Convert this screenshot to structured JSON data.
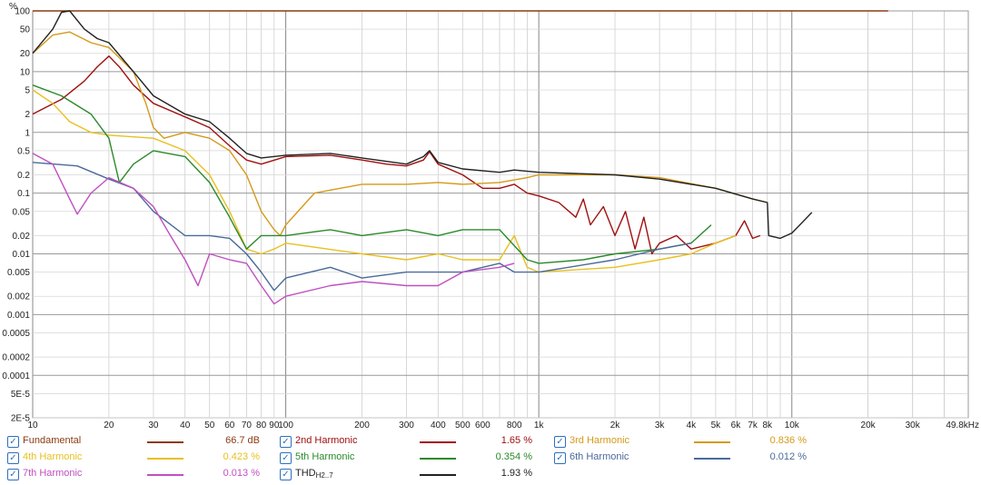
{
  "chart_data": {
    "type": "line",
    "ylabel": "%",
    "xunit": "Hz",
    "xscale": "log",
    "yscale": "log",
    "xlim": [
      10,
      49800
    ],
    "ylim": [
      2e-05,
      100
    ],
    "grid": true,
    "legend_position": "bottom",
    "x_ticks": [
      {
        "v": 10,
        "t": "10"
      },
      {
        "v": 20,
        "t": "20"
      },
      {
        "v": 30,
        "t": "30"
      },
      {
        "v": 40,
        "t": "40"
      },
      {
        "v": 50,
        "t": "50"
      },
      {
        "v": 60,
        "t": "60"
      },
      {
        "v": 70,
        "t": "70"
      },
      {
        "v": 80,
        "t": "80"
      },
      {
        "v": 90,
        "t": "90"
      },
      {
        "v": 100,
        "t": "100"
      },
      {
        "v": 200,
        "t": "200"
      },
      {
        "v": 300,
        "t": "300"
      },
      {
        "v": 400,
        "t": "400"
      },
      {
        "v": 500,
        "t": "500"
      },
      {
        "v": 600,
        "t": "600"
      },
      {
        "v": 800,
        "t": "800"
      },
      {
        "v": 1000,
        "t": "1k"
      },
      {
        "v": 2000,
        "t": "2k"
      },
      {
        "v": 3000,
        "t": "3k"
      },
      {
        "v": 4000,
        "t": "4k"
      },
      {
        "v": 5000,
        "t": "5k"
      },
      {
        "v": 6000,
        "t": "6k"
      },
      {
        "v": 7000,
        "t": "7k"
      },
      {
        "v": 8000,
        "t": "8k"
      },
      {
        "v": 10000,
        "t": "10k"
      },
      {
        "v": 20000,
        "t": "20k"
      },
      {
        "v": 30000,
        "t": "30k"
      },
      {
        "v": 49800,
        "t": "49.8kHz"
      }
    ],
    "y_ticks": [
      {
        "v": 100,
        "t": "100"
      },
      {
        "v": 50,
        "t": "50"
      },
      {
        "v": 20,
        "t": "20"
      },
      {
        "v": 10,
        "t": "10"
      },
      {
        "v": 5,
        "t": "5"
      },
      {
        "v": 2,
        "t": "2"
      },
      {
        "v": 1,
        "t": "1"
      },
      {
        "v": 0.5,
        "t": "0.5"
      },
      {
        "v": 0.2,
        "t": "0.2"
      },
      {
        "v": 0.1,
        "t": "0.1"
      },
      {
        "v": 0.05,
        "t": "0.05"
      },
      {
        "v": 0.02,
        "t": "0.02"
      },
      {
        "v": 0.01,
        "t": "0.01"
      },
      {
        "v": 0.005,
        "t": "0.005"
      },
      {
        "v": 0.002,
        "t": "0.002"
      },
      {
        "v": 0.001,
        "t": "0.001"
      },
      {
        "v": 0.0005,
        "t": "0.0005"
      },
      {
        "v": 0.0002,
        "t": "0.0002"
      },
      {
        "v": 0.0001,
        "t": "0.0001"
      },
      {
        "v": 5e-05,
        "t": "5E-5"
      },
      {
        "v": 2e-05,
        "t": "2E-5"
      }
    ],
    "series": [
      {
        "name": "Fundamental",
        "value": "66.7 dB",
        "color": "#8a3b12",
        "points": [
          [
            10,
            100
          ],
          [
            24000,
            100
          ]
        ]
      },
      {
        "name": "2nd Harmonic",
        "value": "1.65 %",
        "color": "#a01010",
        "points": [
          [
            10,
            2
          ],
          [
            13,
            3.5
          ],
          [
            16,
            7
          ],
          [
            18,
            12
          ],
          [
            20,
            18
          ],
          [
            22,
            12
          ],
          [
            25,
            6
          ],
          [
            30,
            3
          ],
          [
            40,
            1.8
          ],
          [
            50,
            1.2
          ],
          [
            60,
            0.6
          ],
          [
            70,
            0.35
          ],
          [
            80,
            0.3
          ],
          [
            100,
            0.4
          ],
          [
            150,
            0.42
          ],
          [
            200,
            0.35
          ],
          [
            250,
            0.3
          ],
          [
            300,
            0.28
          ],
          [
            350,
            0.35
          ],
          [
            370,
            0.48
          ],
          [
            400,
            0.3
          ],
          [
            500,
            0.2
          ],
          [
            600,
            0.12
          ],
          [
            700,
            0.12
          ],
          [
            800,
            0.14
          ],
          [
            900,
            0.1
          ],
          [
            1000,
            0.09
          ],
          [
            1200,
            0.07
          ],
          [
            1400,
            0.04
          ],
          [
            1500,
            0.08
          ],
          [
            1600,
            0.03
          ],
          [
            1800,
            0.06
          ],
          [
            2000,
            0.02
          ],
          [
            2200,
            0.05
          ],
          [
            2400,
            0.012
          ],
          [
            2600,
            0.04
          ],
          [
            2800,
            0.01
          ],
          [
            3000,
            0.015
          ],
          [
            3500,
            0.02
          ],
          [
            4000,
            0.012
          ],
          [
            5000,
            0.015
          ],
          [
            6000,
            0.02
          ],
          [
            6500,
            0.035
          ],
          [
            7000,
            0.018
          ],
          [
            7500,
            0.02
          ]
        ]
      },
      {
        "name": "3rd Harmonic",
        "value": "0.836 %",
        "color": "#d49a1a",
        "points": [
          [
            10,
            20
          ],
          [
            12,
            40
          ],
          [
            14,
            45
          ],
          [
            17,
            30
          ],
          [
            20,
            25
          ],
          [
            25,
            10
          ],
          [
            28,
            3
          ],
          [
            30,
            1.2
          ],
          [
            33,
            0.8
          ],
          [
            40,
            1
          ],
          [
            50,
            0.8
          ],
          [
            60,
            0.5
          ],
          [
            70,
            0.2
          ],
          [
            80,
            0.05
          ],
          [
            90,
            0.025
          ],
          [
            95,
            0.02
          ],
          [
            100,
            0.03
          ],
          [
            130,
            0.1
          ],
          [
            200,
            0.14
          ],
          [
            300,
            0.14
          ],
          [
            400,
            0.15
          ],
          [
            500,
            0.14
          ],
          [
            700,
            0.15
          ],
          [
            900,
            0.18
          ],
          [
            1000,
            0.2
          ],
          [
            2000,
            0.2
          ],
          [
            3000,
            0.18
          ],
          [
            5000,
            0.12
          ],
          [
            7000,
            0.08
          ],
          [
            8000,
            0.07
          ]
        ]
      },
      {
        "name": "4th Harmonic",
        "value": "0.423 %",
        "color": "#e8c020",
        "points": [
          [
            10,
            5
          ],
          [
            12,
            3
          ],
          [
            14,
            1.5
          ],
          [
            17,
            1
          ],
          [
            20,
            0.9
          ],
          [
            30,
            0.8
          ],
          [
            40,
            0.5
          ],
          [
            50,
            0.2
          ],
          [
            60,
            0.05
          ],
          [
            70,
            0.012
          ],
          [
            80,
            0.01
          ],
          [
            90,
            0.012
          ],
          [
            100,
            0.015
          ],
          [
            200,
            0.01
          ],
          [
            300,
            0.008
          ],
          [
            400,
            0.01
          ],
          [
            500,
            0.008
          ],
          [
            700,
            0.008
          ],
          [
            800,
            0.02
          ],
          [
            900,
            0.006
          ],
          [
            1000,
            0.005
          ],
          [
            2000,
            0.006
          ],
          [
            3000,
            0.008
          ],
          [
            4000,
            0.01
          ],
          [
            5000,
            0.015
          ],
          [
            6000,
            0.02
          ]
        ]
      },
      {
        "name": "5th Harmonic",
        "value": "0.354 %",
        "color": "#2a8a2a",
        "points": [
          [
            10,
            6
          ],
          [
            13,
            4
          ],
          [
            17,
            2
          ],
          [
            20,
            0.8
          ],
          [
            22,
            0.15
          ],
          [
            25,
            0.3
          ],
          [
            30,
            0.5
          ],
          [
            40,
            0.4
          ],
          [
            50,
            0.15
          ],
          [
            60,
            0.04
          ],
          [
            70,
            0.012
          ],
          [
            80,
            0.02
          ],
          [
            100,
            0.02
          ],
          [
            150,
            0.025
          ],
          [
            200,
            0.02
          ],
          [
            300,
            0.025
          ],
          [
            400,
            0.02
          ],
          [
            500,
            0.025
          ],
          [
            700,
            0.025
          ],
          [
            900,
            0.008
          ],
          [
            1000,
            0.007
          ],
          [
            1500,
            0.008
          ],
          [
            2000,
            0.01
          ],
          [
            3000,
            0.012
          ],
          [
            4000,
            0.015
          ],
          [
            4800,
            0.03
          ]
        ]
      },
      {
        "name": "6th Harmonic",
        "value": "0.012 %",
        "color": "#4a6a9a",
        "points": [
          [
            10,
            0.32
          ],
          [
            15,
            0.28
          ],
          [
            20,
            0.17
          ],
          [
            25,
            0.12
          ],
          [
            30,
            0.05
          ],
          [
            40,
            0.02
          ],
          [
            50,
            0.02
          ],
          [
            60,
            0.018
          ],
          [
            70,
            0.01
          ],
          [
            80,
            0.005
          ],
          [
            90,
            0.0025
          ],
          [
            100,
            0.004
          ],
          [
            150,
            0.006
          ],
          [
            200,
            0.004
          ],
          [
            300,
            0.005
          ],
          [
            500,
            0.005
          ],
          [
            700,
            0.007
          ],
          [
            800,
            0.005
          ],
          [
            1000,
            0.005
          ],
          [
            2000,
            0.008
          ],
          [
            3000,
            0.012
          ],
          [
            4000,
            0.015
          ]
        ]
      },
      {
        "name": "7th Harmonic",
        "value": "0.013 %",
        "color": "#c050c0",
        "points": [
          [
            10,
            0.45
          ],
          [
            12,
            0.3
          ],
          [
            14,
            0.08
          ],
          [
            15,
            0.045
          ],
          [
            17,
            0.1
          ],
          [
            20,
            0.18
          ],
          [
            25,
            0.12
          ],
          [
            30,
            0.06
          ],
          [
            35,
            0.02
          ],
          [
            40,
            0.008
          ],
          [
            45,
            0.003
          ],
          [
            50,
            0.01
          ],
          [
            60,
            0.008
          ],
          [
            70,
            0.007
          ],
          [
            80,
            0.003
          ],
          [
            90,
            0.0015
          ],
          [
            100,
            0.002
          ],
          [
            150,
            0.003
          ],
          [
            200,
            0.0035
          ],
          [
            300,
            0.003
          ],
          [
            400,
            0.003
          ],
          [
            500,
            0.005
          ],
          [
            700,
            0.006
          ],
          [
            800,
            0.007
          ]
        ]
      },
      {
        "name": "THD",
        "sub": "H2..7",
        "value": "1.93 %",
        "color": "#222222",
        "points": [
          [
            10,
            20
          ],
          [
            12,
            50
          ],
          [
            13,
            95
          ],
          [
            14,
            100
          ],
          [
            16,
            50
          ],
          [
            18,
            35
          ],
          [
            20,
            30
          ],
          [
            25,
            10
          ],
          [
            30,
            4
          ],
          [
            40,
            2
          ],
          [
            50,
            1.5
          ],
          [
            60,
            0.8
          ],
          [
            70,
            0.45
          ],
          [
            80,
            0.38
          ],
          [
            100,
            0.42
          ],
          [
            150,
            0.45
          ],
          [
            200,
            0.38
          ],
          [
            300,
            0.3
          ],
          [
            350,
            0.4
          ],
          [
            370,
            0.5
          ],
          [
            400,
            0.32
          ],
          [
            500,
            0.25
          ],
          [
            700,
            0.22
          ],
          [
            800,
            0.24
          ],
          [
            1000,
            0.22
          ],
          [
            2000,
            0.2
          ],
          [
            3000,
            0.17
          ],
          [
            5000,
            0.12
          ],
          [
            7000,
            0.08
          ],
          [
            8000,
            0.07
          ],
          [
            8100,
            0.02
          ],
          [
            9000,
            0.018
          ],
          [
            10000,
            0.022
          ],
          [
            12000,
            0.048
          ]
        ]
      }
    ]
  }
}
